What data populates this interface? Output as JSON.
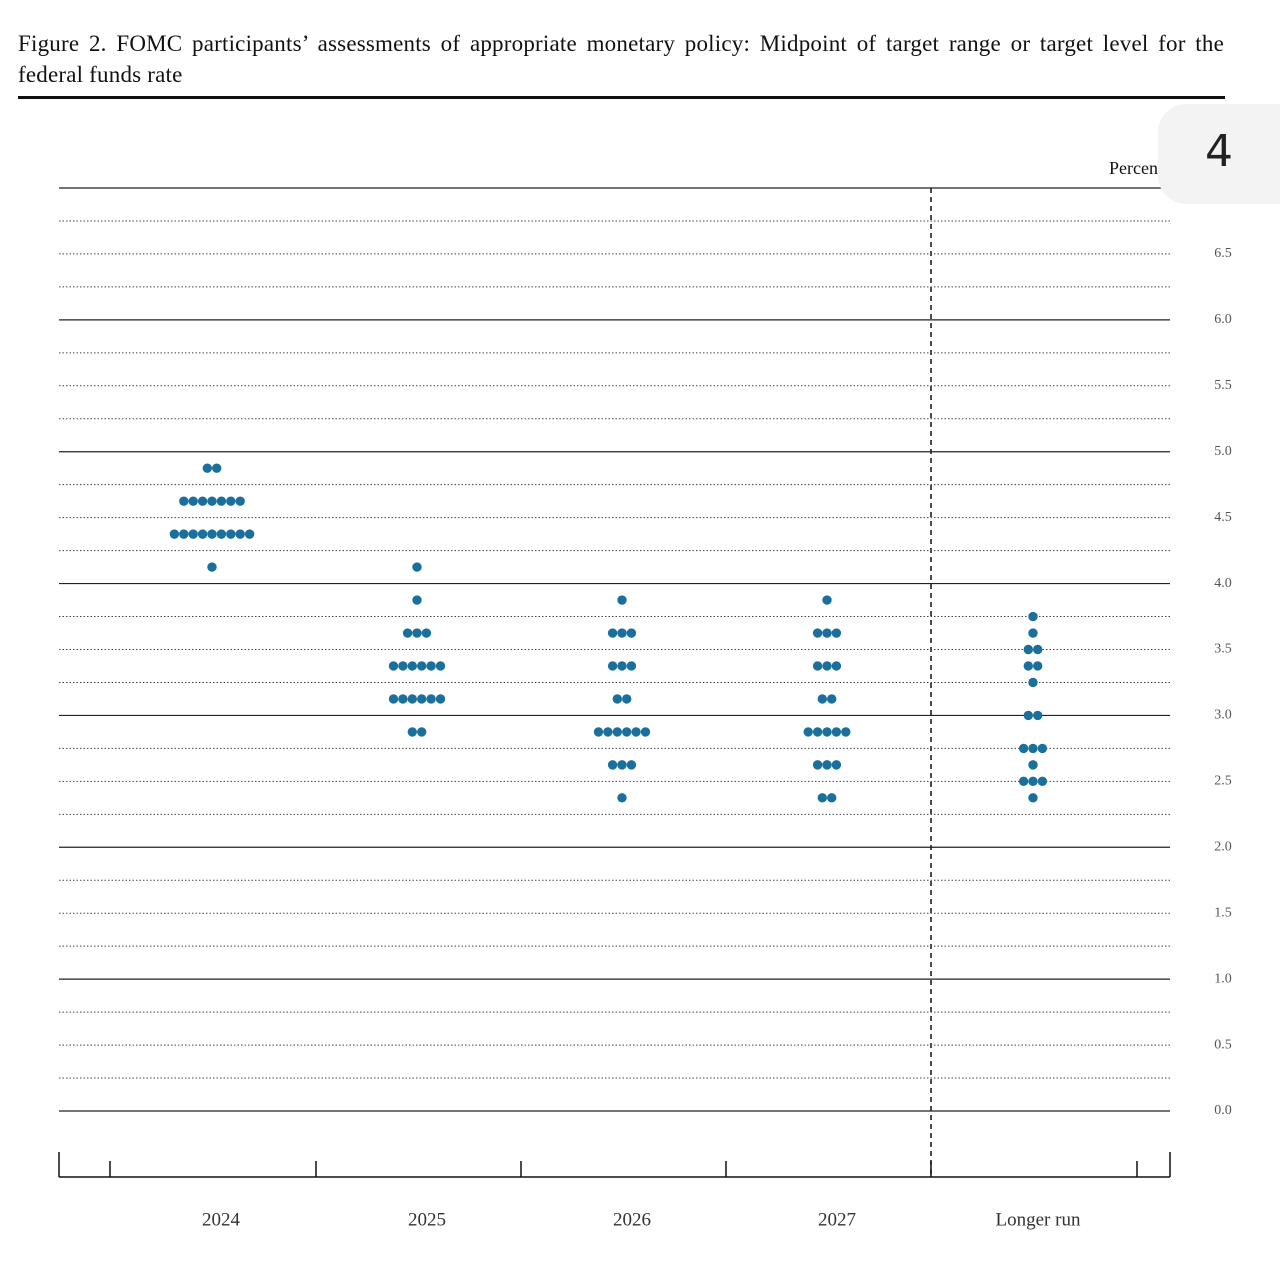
{
  "chart_data": {
    "type": "dot",
    "title": "Figure 2.  FOMC participants’ assessments of appropriate monetary policy:  Midpoint of target range or target level for the federal funds rate",
    "y_axis_label": "Percent",
    "page_indicator": "4",
    "categories": [
      "2024",
      "2025",
      "2026",
      "2027",
      "Longer run"
    ],
    "color": "#1a6f9c",
    "dots": [
      [
        {
          "rate": 4.875,
          "count": 2
        },
        {
          "rate": 4.625,
          "count": 7
        },
        {
          "rate": 4.375,
          "count": 9
        },
        {
          "rate": 4.125,
          "count": 1
        }
      ],
      [
        {
          "rate": 4.125,
          "count": 1
        },
        {
          "rate": 3.875,
          "count": 1
        },
        {
          "rate": 3.625,
          "count": 3
        },
        {
          "rate": 3.375,
          "count": 6
        },
        {
          "rate": 3.125,
          "count": 6
        },
        {
          "rate": 2.875,
          "count": 2
        }
      ],
      [
        {
          "rate": 3.875,
          "count": 1
        },
        {
          "rate": 3.625,
          "count": 3
        },
        {
          "rate": 3.375,
          "count": 3
        },
        {
          "rate": 3.125,
          "count": 2
        },
        {
          "rate": 2.875,
          "count": 6
        },
        {
          "rate": 2.625,
          "count": 3
        },
        {
          "rate": 2.375,
          "count": 1
        }
      ],
      [
        {
          "rate": 3.875,
          "count": 1
        },
        {
          "rate": 3.625,
          "count": 3
        },
        {
          "rate": 3.375,
          "count": 3
        },
        {
          "rate": 3.125,
          "count": 2
        },
        {
          "rate": 2.875,
          "count": 5
        },
        {
          "rate": 2.625,
          "count": 3
        },
        {
          "rate": 2.375,
          "count": 2
        }
      ],
      [
        {
          "rate": 3.75,
          "count": 1
        },
        {
          "rate": 3.625,
          "count": 1
        },
        {
          "rate": 3.5,
          "count": 2
        },
        {
          "rate": 3.375,
          "count": 2
        },
        {
          "rate": 3.25,
          "count": 1
        },
        {
          "rate": 3.0,
          "count": 2
        },
        {
          "rate": 2.75,
          "count": 3
        },
        {
          "rate": 2.625,
          "count": 1
        },
        {
          "rate": 2.5,
          "count": 3
        },
        {
          "rate": 2.375,
          "count": 1
        }
      ]
    ],
    "ylim": [
      0,
      7
    ],
    "yticks": [
      {
        "value": 0,
        "label": "0.0"
      },
      {
        "value": 0.5,
        "label": "0.5"
      },
      {
        "value": 1,
        "label": "1.0"
      },
      {
        "value": 1.5,
        "label": "1.5"
      },
      {
        "value": 2,
        "label": "2.0"
      },
      {
        "value": 2.5,
        "label": "2.5"
      },
      {
        "value": 3,
        "label": "3.0"
      },
      {
        "value": 3.5,
        "label": "3.5"
      },
      {
        "value": 4,
        "label": "4.0"
      },
      {
        "value": 4.5,
        "label": "4.5"
      },
      {
        "value": 5,
        "label": "5.0"
      },
      {
        "value": 5.5,
        "label": "5.5"
      },
      {
        "value": 6,
        "label": "6.0"
      },
      {
        "value": 6.5,
        "label": "6.5"
      }
    ],
    "grid_lines": [
      0,
      0.25,
      0.5,
      0.75,
      1,
      1.25,
      1.5,
      1.75,
      2,
      2.25,
      2.5,
      2.75,
      3,
      3.25,
      3.5,
      3.75,
      4,
      4.25,
      4.5,
      4.75,
      5,
      5.25,
      5.5,
      5.75,
      6,
      6.25,
      6.5,
      6.75,
      7
    ],
    "grid": true
  }
}
